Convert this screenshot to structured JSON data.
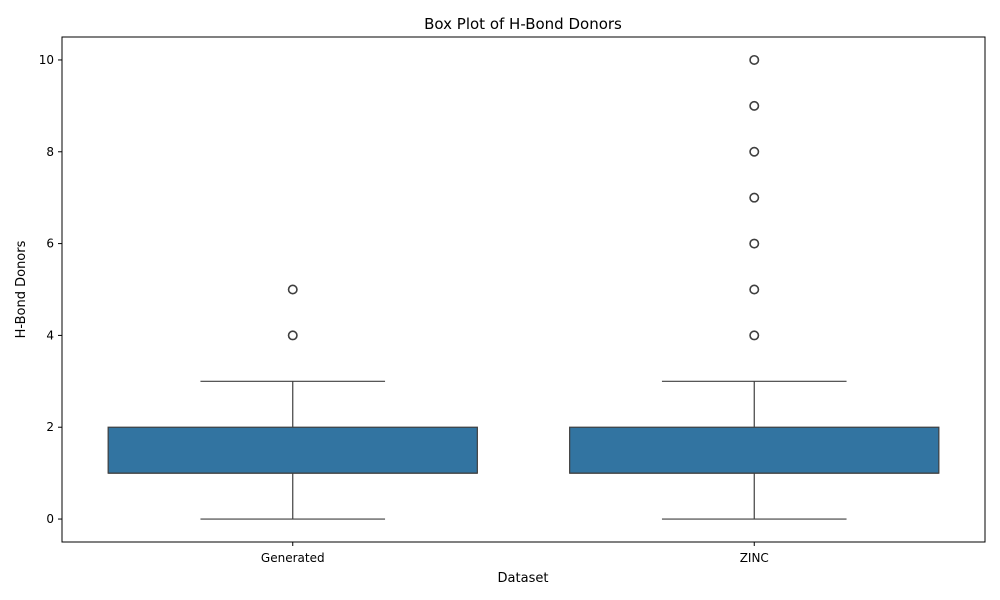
{
  "chart_data": {
    "type": "box",
    "title": "Box Plot of H-Bond Donors",
    "xlabel": "Dataset",
    "ylabel": "H-Bond Donors",
    "categories": [
      "Generated",
      "ZINC"
    ],
    "ylim": [
      -0.5,
      10.5
    ],
    "yticks": [
      0,
      2,
      4,
      6,
      8,
      10
    ],
    "grid": false,
    "box_color": "#3274a1",
    "line_color": "#3f3f3f",
    "boxes": [
      {
        "category": "Generated",
        "whisker_low": 0,
        "q1": 1,
        "median": 1,
        "q3": 2,
        "whisker_high": 3,
        "outliers": [
          4,
          5
        ]
      },
      {
        "category": "ZINC",
        "whisker_low": 0,
        "q1": 1,
        "median": 1,
        "q3": 2,
        "whisker_high": 3,
        "outliers": [
          4,
          5,
          6,
          7,
          8,
          9,
          10
        ]
      }
    ]
  }
}
